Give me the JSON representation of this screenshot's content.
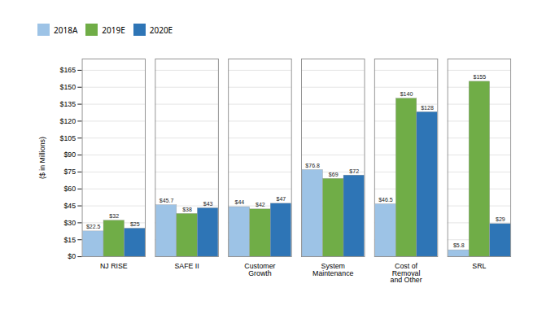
{
  "chart_data": {
    "type": "bar",
    "categories": [
      "NJ RISE",
      "SAFE II",
      "Customer\nGrowth",
      "System\nMaintenance",
      "Cost of\nRemoval\nand Other",
      "SRL"
    ],
    "series": [
      {
        "name": "2018A",
        "color": "#9DC3E6",
        "values": [
          22.5,
          45.7,
          44,
          76.8,
          46.5,
          5.8
        ],
        "value_labels": [
          "$22.5",
          "$45.7",
          "$44",
          "$76.8",
          "$46.5",
          "$5.8"
        ]
      },
      {
        "name": "2019E",
        "color": "#70AD47",
        "values": [
          32,
          38,
          42,
          69,
          140,
          155
        ],
        "value_labels": [
          "$32",
          "$38",
          "$42",
          "$69",
          "$140",
          "$155"
        ]
      },
      {
        "name": "2020E",
        "color": "#2E75B6",
        "values": [
          25,
          43,
          47,
          72,
          128,
          29
        ],
        "value_labels": [
          "$25",
          "$43",
          "$47",
          "$72",
          "$128",
          "$29"
        ]
      }
    ],
    "ylabel": "($ in Millions)",
    "ylim": [
      0,
      175
    ],
    "yticks": [
      {
        "value": 0,
        "label": "$0"
      },
      {
        "value": 15,
        "label": "$15"
      },
      {
        "value": 30,
        "label": "$30"
      },
      {
        "value": 45,
        "label": "$45"
      },
      {
        "value": 60,
        "label": "$60"
      },
      {
        "value": 75,
        "label": "$75"
      },
      {
        "value": 90,
        "label": "$90"
      },
      {
        "value": 105,
        "label": "$105"
      },
      {
        "value": 120,
        "label": "$120"
      },
      {
        "value": 135,
        "label": "$135"
      },
      {
        "value": 150,
        "label": "$150"
      },
      {
        "value": 165,
        "label": "$165"
      }
    ],
    "grid": true,
    "legend": "top",
    "data_labels": true
  }
}
